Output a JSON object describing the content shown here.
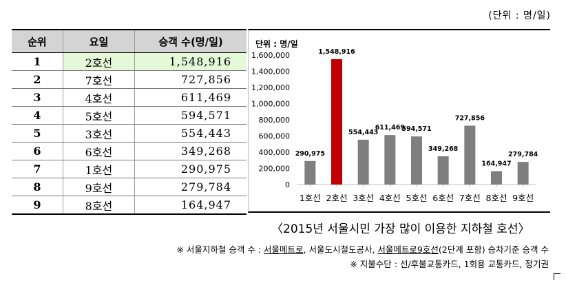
{
  "unit_note": "(단위 : 명/일)",
  "table": {
    "headers": [
      "순위",
      "요일",
      "승객 수(명/일)"
    ],
    "rows": [
      {
        "rank": "1",
        "line": "2호선",
        "value": "1,548,916"
      },
      {
        "rank": "2",
        "line": "7호선",
        "value": "727,856"
      },
      {
        "rank": "3",
        "line": "4호선",
        "value": "611,469"
      },
      {
        "rank": "4",
        "line": "5호선",
        "value": "594,571"
      },
      {
        "rank": "5",
        "line": "3호선",
        "value": "554,443"
      },
      {
        "rank": "6",
        "line": "6호선",
        "value": "349,268"
      },
      {
        "rank": "7",
        "line": "1호선",
        "value": "290,975"
      },
      {
        "rank": "8",
        "line": "9호선",
        "value": "279,784"
      },
      {
        "rank": "9",
        "line": "8호선",
        "value": "164,947"
      }
    ]
  },
  "chart_data": {
    "type": "bar",
    "title": "",
    "ylabel": "단위 : 명/일",
    "xlabel": "",
    "categories": [
      "1호선",
      "2호선",
      "3호선",
      "4호선",
      "5호선",
      "6호선",
      "7호선",
      "8호선",
      "9호선"
    ],
    "values": [
      290975,
      1548916,
      554443,
      611469,
      594571,
      349268,
      727856,
      164947,
      279784
    ],
    "data_labels": [
      "290,975",
      "1,548,916",
      "554,443",
      "611,469",
      "594,571",
      "349,268",
      "727,856",
      "164,947",
      "279,784"
    ],
    "ylim": [
      0,
      1600000
    ],
    "yticks": [
      0,
      200000,
      400000,
      600000,
      800000,
      1000000,
      1200000,
      1400000,
      1600000
    ],
    "ytick_labels": [
      "0",
      "200,000",
      "400,000",
      "600,000",
      "800,000",
      "1,000,000",
      "1,200,000",
      "1,400,000",
      "1,600,000"
    ],
    "grid": false,
    "colors": {
      "default": "#7f7f7f",
      "highlight": "#c00000"
    },
    "highlight_category": "2호선"
  },
  "caption": "〈2015년 서울시민 가장 많이 이용한 지하철 호선〉",
  "footnotes": {
    "note1_prefix": "※ 서울지하철 승객 수 : ",
    "note1_link1": "서울메트로",
    "note1_mid": ", 서울도시철도공사, ",
    "note1_link2": "서울메트로9호선",
    "note1_suffix": "(2단계 포함) 승차기준 승객 수",
    "note2": "※ 지불수단 : 선/후불교통카드, 1회용 교통카드, 정기권"
  }
}
